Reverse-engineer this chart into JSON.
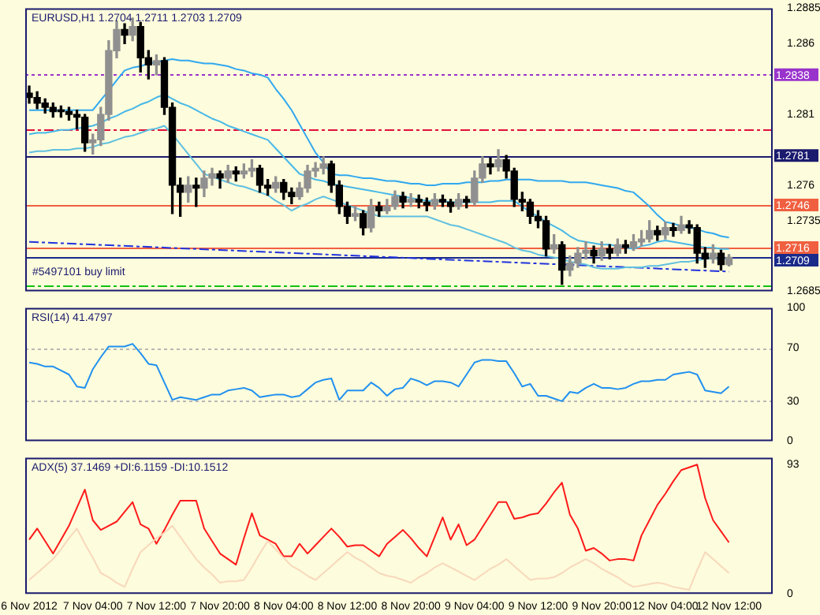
{
  "chart_data": [
    {
      "type": "candlestick",
      "title": "EURUSD,H1 1.2704 1.2711 1.2703 1.2709",
      "colors": [
        "#000000",
        "#000000",
        "#000000",
        "#000000",
        "#000000",
        "#000000",
        "#000000",
        "#000000",
        "#909090",
        "#909090",
        "#909090",
        "#909090",
        "#000000",
        "#909090",
        "#000000",
        "#000000",
        "#909090",
        "#000000",
        "#000000",
        "#000000",
        "#909090",
        "#000000",
        "#909090",
        "#909090",
        "#000000",
        "#909090",
        "#000000",
        "#909090",
        "#909090",
        "#000000",
        "#000000",
        "#909090",
        "#000000",
        "#000000",
        "#909090",
        "#909090",
        "#909090",
        "#909090",
        "#000000",
        "#000000",
        "#000000",
        "#909090",
        "#000000",
        "#909090",
        "#000000",
        "#909090",
        "#909090",
        "#000000",
        "#909090",
        "#000000",
        "#000000",
        "#909090",
        "#000000",
        "#000000",
        "#909090",
        "#000000",
        "#909090",
        "#909090",
        "#000000",
        "#909090",
        "#000000",
        "#000000",
        "#000000",
        "#000000",
        "#000000",
        "#000000",
        "#909090",
        "#000000",
        "#909090",
        "#909090",
        "#909090",
        "#000000",
        "#909090",
        "#000000",
        "#909090",
        "#000000",
        "#909090",
        "#909090",
        "#909090",
        "#000000",
        "#909090",
        "#000000",
        "#909090",
        "#000000",
        "#000000",
        "#000000",
        "#909090",
        "#000000",
        "#909090",
        null,
        null,
        null,
        null,
        null
      ],
      "categories": [
        "6 Nov 2012",
        null,
        null,
        null,
        null,
        null,
        null,
        null,
        "7 Nov 04:00",
        null,
        null,
        null,
        null,
        null,
        null,
        null,
        "7 Nov 12:00",
        null,
        null,
        null,
        null,
        null,
        null,
        null,
        "7 Nov 20:00",
        null,
        null,
        null,
        null,
        null,
        null,
        null,
        "8 Nov 04:00",
        null,
        null,
        null,
        null,
        null,
        null,
        null,
        "8 Nov 12:00",
        null,
        null,
        null,
        null,
        null,
        null,
        null,
        "8 Nov 20:00",
        null,
        null,
        null,
        null,
        null,
        null,
        null,
        "9 Nov 04:00",
        null,
        null,
        null,
        null,
        null,
        null,
        null,
        "9 Nov 12:00",
        null,
        null,
        null,
        null,
        null,
        null,
        null,
        "9 Nov 20:00",
        null,
        null,
        null,
        null,
        null,
        null,
        null,
        "12 Nov 04:00",
        null,
        null,
        null,
        null,
        null,
        null,
        null,
        "12 Nov 12:00",
        null,
        null,
        null,
        null,
        null
      ],
      "ohlc": [
        [
          1.2825,
          1.283,
          1.2818,
          1.2822
        ],
        [
          1.2822,
          1.2826,
          1.2814,
          1.2818
        ],
        [
          1.2818,
          1.2821,
          1.2811,
          1.2815
        ],
        [
          1.2815,
          1.2818,
          1.2808,
          1.2812
        ],
        [
          1.2812,
          1.2816,
          1.2808,
          1.2812
        ],
        [
          1.2812,
          1.2815,
          1.2806,
          1.281
        ],
        [
          1.281,
          1.2813,
          1.28,
          1.2808
        ],
        [
          1.2808,
          1.281,
          1.2784,
          1.279
        ],
        [
          1.279,
          1.2796,
          1.2782,
          1.2792
        ],
        [
          1.2792,
          1.2815,
          1.2788,
          1.281
        ],
        [
          1.281,
          1.2862,
          1.2806,
          1.2855
        ],
        [
          1.2855,
          1.2876,
          1.285,
          1.287
        ],
        [
          1.287,
          1.2874,
          1.286,
          1.2866
        ],
        [
          1.2866,
          1.2878,
          1.2862,
          1.2872
        ],
        [
          1.2872,
          1.2875,
          1.284,
          1.285
        ],
        [
          1.285,
          1.2855,
          1.2835,
          1.2845
        ],
        [
          1.2845,
          1.2852,
          1.2838,
          1.2848
        ],
        [
          1.2848,
          1.285,
          1.281,
          1.2815
        ],
        [
          1.2815,
          1.2818,
          1.274,
          1.276
        ],
        [
          1.276,
          1.2765,
          1.2738,
          1.2755
        ],
        [
          1.2755,
          1.2766,
          1.2748,
          1.276
        ],
        [
          1.276,
          1.2765,
          1.2745,
          1.2758
        ],
        [
          1.2758,
          1.277,
          1.2752,
          1.2765
        ],
        [
          1.2765,
          1.2772,
          1.276,
          1.2768
        ],
        [
          1.2768,
          1.277,
          1.2758,
          1.2765
        ],
        [
          1.2765,
          1.2774,
          1.2762,
          1.277
        ],
        [
          1.277,
          1.2773,
          1.2763,
          1.2768
        ],
        [
          1.2768,
          1.2775,
          1.2765,
          1.277
        ],
        [
          1.277,
          1.2778,
          1.2766,
          1.2772
        ],
        [
          1.2772,
          1.2774,
          1.2755,
          1.276
        ],
        [
          1.276,
          1.2764,
          1.2753,
          1.2758
        ],
        [
          1.2758,
          1.2766,
          1.2755,
          1.2762
        ],
        [
          1.2762,
          1.2764,
          1.275,
          1.2755
        ],
        [
          1.2755,
          1.2758,
          1.2747,
          1.2752
        ],
        [
          1.2752,
          1.2762,
          1.275,
          1.2758
        ],
        [
          1.2758,
          1.2774,
          1.2755,
          1.277
        ],
        [
          1.277,
          1.2776,
          1.2766,
          1.2772
        ],
        [
          1.2772,
          1.278,
          1.2768,
          1.2775
        ],
        [
          1.2775,
          1.2777,
          1.2755,
          1.276
        ],
        [
          1.276,
          1.2763,
          1.274,
          1.2745
        ],
        [
          1.2745,
          1.2748,
          1.2733,
          1.2738
        ],
        [
          1.2738,
          1.2745,
          1.2735,
          1.274
        ],
        [
          1.274,
          1.2742,
          1.2725,
          1.273
        ],
        [
          1.273,
          1.275,
          1.2727,
          1.2745
        ],
        [
          1.2745,
          1.2748,
          1.2738,
          1.2742
        ],
        [
          1.2742,
          1.275,
          1.274,
          1.2745
        ],
        [
          1.2745,
          1.2756,
          1.2743,
          1.2752
        ],
        [
          1.2752,
          1.2755,
          1.2744,
          1.2748
        ],
        [
          1.2748,
          1.2754,
          1.2745,
          1.275
        ],
        [
          1.275,
          1.2753,
          1.2744,
          1.2748
        ],
        [
          1.2748,
          1.2751,
          1.2742,
          1.2746
        ],
        [
          1.2746,
          1.2754,
          1.2743,
          1.275
        ],
        [
          1.275,
          1.2753,
          1.2745,
          1.2748
        ],
        [
          1.2748,
          1.275,
          1.2741,
          1.2745
        ],
        [
          1.2745,
          1.2754,
          1.2743,
          1.275
        ],
        [
          1.275,
          1.2752,
          1.2744,
          1.2748
        ],
        [
          1.2748,
          1.277,
          1.2746,
          1.2765
        ],
        [
          1.2765,
          1.278,
          1.2762,
          1.2775
        ],
        [
          1.2775,
          1.2779,
          1.2768,
          1.2773
        ],
        [
          1.2773,
          1.2785,
          1.277,
          1.2778
        ],
        [
          1.2778,
          1.2781,
          1.2765,
          1.277
        ],
        [
          1.277,
          1.2772,
          1.2745,
          1.275
        ],
        [
          1.275,
          1.2755,
          1.2742,
          1.2748
        ],
        [
          1.2748,
          1.275,
          1.2733,
          1.2738
        ],
        [
          1.2738,
          1.2742,
          1.273,
          1.2735
        ],
        [
          1.2735,
          1.2738,
          1.271,
          1.2715
        ],
        [
          1.2715,
          1.2725,
          1.2712,
          1.2718
        ],
        [
          1.2718,
          1.272,
          1.269,
          1.27
        ],
        [
          1.27,
          1.271,
          1.2696,
          1.2705
        ],
        [
          1.2705,
          1.2716,
          1.2702,
          1.2712
        ],
        [
          1.2712,
          1.272,
          1.2708,
          1.2714
        ],
        [
          1.2714,
          1.2717,
          1.2705,
          1.271
        ],
        [
          1.271,
          1.272,
          1.2707,
          1.2715
        ],
        [
          1.2715,
          1.2718,
          1.2708,
          1.2712
        ],
        [
          1.2712,
          1.2722,
          1.271,
          1.2718
        ],
        [
          1.2718,
          1.2721,
          1.2712,
          1.2716
        ],
        [
          1.2716,
          1.2725,
          1.2714,
          1.272
        ],
        [
          1.272,
          1.2728,
          1.2717,
          1.2722
        ],
        [
          1.2722,
          1.2735,
          1.272,
          1.2728
        ],
        [
          1.2728,
          1.2731,
          1.2721,
          1.2725
        ],
        [
          1.2725,
          1.2734,
          1.2722,
          1.273
        ],
        [
          1.273,
          1.2733,
          1.2724,
          1.2728
        ],
        [
          1.2728,
          1.2738,
          1.2726,
          1.2732
        ],
        [
          1.2732,
          1.2735,
          1.2726,
          1.273
        ],
        [
          1.273,
          1.2732,
          1.2705,
          1.2712
        ],
        [
          1.2712,
          1.2716,
          1.2702,
          1.2708
        ],
        [
          1.2708,
          1.2718,
          1.2705,
          1.2712
        ],
        [
          1.2712,
          1.2714,
          1.27,
          1.2704
        ],
        [
          1.2704,
          1.2711,
          1.2703,
          1.2709
        ],
        null,
        null,
        null,
        null,
        null
      ],
      "series": [
        {
          "type": "line",
          "color": "#30a8f0",
          "values": [
            1.2813,
            1.2813,
            1.2813,
            1.2813,
            1.2813,
            1.2813,
            1.2813,
            1.2813,
            1.2813,
            1.282,
            1.2827,
            1.2834,
            1.2841,
            1.2843,
            1.2844,
            1.2846,
            1.2847,
            1.2848,
            1.2849,
            1.2848,
            1.2848,
            1.2847,
            1.2846,
            1.2846,
            1.2845,
            1.2844,
            1.2842,
            1.2841,
            1.2839,
            1.2838,
            1.2836,
            1.2828,
            1.2821,
            1.2813,
            1.2803,
            1.2793,
            1.2783,
            1.2776,
            1.2768,
            1.2767,
            1.2767,
            1.2766,
            1.2765,
            1.2765,
            1.2764,
            1.2763,
            1.2763,
            1.2762,
            1.2761,
            1.2761,
            1.276,
            1.276,
            1.2761,
            1.2761,
            1.2761,
            1.2762,
            1.2762,
            1.2762,
            1.2763,
            1.2763,
            1.2764,
            1.2764,
            1.2764,
            1.2764,
            1.2763,
            1.2763,
            1.2763,
            1.2763,
            1.2762,
            1.2762,
            1.2762,
            1.2761,
            1.276,
            1.2759,
            1.2758,
            1.2756,
            1.2755,
            1.275,
            1.2745,
            1.2739,
            1.2734,
            1.2733,
            1.2731,
            1.273,
            1.2729,
            1.2727,
            1.2726,
            1.2724,
            1.2723,
            null,
            null,
            null,
            null,
            null
          ]
        },
        {
          "type": "line",
          "color": "#48b8e8",
          "values": [
            1.2796,
            1.2797,
            1.2797,
            1.2798,
            1.2799,
            1.2799,
            1.28,
            1.2801,
            1.2802,
            1.2804,
            1.2807,
            1.2809,
            1.2812,
            1.2814,
            1.2817,
            1.2819,
            1.2822,
            1.2824,
            1.2821,
            1.2818,
            1.2816,
            1.2813,
            1.281,
            1.2807,
            1.2805,
            1.2802,
            1.28,
            1.2798,
            1.2796,
            1.2794,
            1.2792,
            1.2786,
            1.278,
            1.2774,
            1.2768,
            1.2766,
            1.2764,
            1.2763,
            1.2761,
            1.276,
            1.2759,
            1.2758,
            1.2757,
            1.2756,
            1.2755,
            1.2754,
            1.2753,
            1.2752,
            1.2751,
            1.275,
            1.2749,
            1.2749,
            1.2749,
            1.2748,
            1.2748,
            1.2748,
            1.2748,
            1.2748,
            1.2748,
            1.2749,
            1.2749,
            1.2749,
            1.2745,
            1.2741,
            1.2738,
            1.2734,
            1.2731,
            1.2728,
            1.2724,
            1.2721,
            1.272,
            1.2719,
            1.2718,
            1.2718,
            1.2717,
            1.2716,
            1.2715,
            1.2717,
            1.2718,
            1.272,
            1.2721,
            1.272,
            1.2719,
            1.2718,
            1.2717,
            1.2716,
            1.2716,
            1.2715,
            1.2715,
            null,
            null,
            null,
            null,
            null
          ]
        },
        {
          "type": "line",
          "color": "#60c0e0",
          "values": [
            1.2783,
            1.2784,
            1.2784,
            1.2785,
            1.2785,
            1.2785,
            1.2786,
            1.2786,
            1.2787,
            1.2789,
            1.279,
            1.2792,
            1.2794,
            1.2795,
            1.2797,
            1.2799,
            1.28,
            1.2802,
            1.2796,
            1.2789,
            1.2782,
            1.2775,
            1.2768,
            1.2766,
            1.2764,
            1.2762,
            1.276,
            1.2759,
            1.2757,
            1.2755,
            1.2753,
            1.2749,
            1.2746,
            1.2742,
            1.2745,
            1.2747,
            1.275,
            1.2752,
            1.275,
            1.2748,
            1.2746,
            1.2744,
            1.2742,
            1.274,
            1.2738,
            1.2738,
            1.2738,
            1.2738,
            1.2738,
            1.2738,
            1.2738,
            1.2736,
            1.2734,
            1.2732,
            1.2731,
            1.2729,
            1.2727,
            1.2725,
            1.2723,
            1.2721,
            1.2719,
            1.2716,
            1.2714,
            1.2713,
            1.2711,
            1.271,
            1.2709,
            1.2708,
            1.2706,
            1.2705,
            1.2704,
            1.2702,
            1.2701,
            1.2701,
            1.2701,
            1.2702,
            1.2702,
            1.2702,
            1.2703,
            1.2703,
            1.2704,
            1.2705,
            1.2706,
            1.2706,
            1.2707,
            1.2708,
            1.2708,
            1.2708,
            1.2708,
            null,
            null,
            null,
            null,
            null
          ]
        },
        {
          "type": "line",
          "color": "#2233dd",
          "line_style": "dashed",
          "x": [
            "6 Nov 2012",
            "12 Nov 12:00"
          ],
          "values": [
            1.272,
            1.2699
          ]
        }
      ],
      "ylim": [
        1.2685,
        1.2885
      ],
      "yticks": [
        1.2685,
        1.2735,
        1.276,
        1.281,
        1.286,
        1.2885
      ],
      "ref_lines": [
        {
          "axis": "y",
          "value": 1.2838,
          "label": "1.2838",
          "color": "#9933cc",
          "line_style": "dotted"
        },
        {
          "axis": "y",
          "value": 1.28,
          "color": "#e0103a",
          "line_style": "dashed"
        },
        {
          "axis": "y",
          "value": 1.2781,
          "label": "1.2781",
          "color": "#1a1a6e"
        },
        {
          "axis": "y",
          "value": 1.2746,
          "label": "1.2746",
          "color": "#f06040"
        },
        {
          "axis": "y",
          "value": 1.2716,
          "label": "1.2716",
          "color": "#f06040"
        },
        {
          "axis": "y",
          "value": 1.2709,
          "label": "1.2709",
          "color": "#1a2a8a"
        },
        {
          "axis": "y",
          "value": 1.2689,
          "color": "#10c010",
          "line_style": "dashed"
        }
      ],
      "annotations": [
        {
          "text": "#5497101 buy limit",
          "x": "6 Nov 2012",
          "y": 1.2689
        }
      ],
      "tick_labels": "y"
    },
    {
      "type": "line",
      "title": "RSI(14) 41.4797",
      "color": "#2090f0",
      "categories": [
        "6 Nov 2012",
        null,
        null,
        null,
        null,
        null,
        null,
        null,
        "7 Nov 04:00",
        null,
        null,
        null,
        null,
        null,
        null,
        null,
        "7 Nov 12:00",
        null,
        null,
        null,
        null,
        null,
        null,
        null,
        "7 Nov 20:00",
        null,
        null,
        null,
        null,
        null,
        null,
        null,
        "8 Nov 04:00",
        null,
        null,
        null,
        null,
        null,
        null,
        null,
        "8 Nov 12:00",
        null,
        null,
        null,
        null,
        null,
        null,
        null,
        "8 Nov 20:00",
        null,
        null,
        null,
        null,
        null,
        null,
        null,
        "9 Nov 04:00",
        null,
        null,
        null,
        null,
        null,
        null,
        null,
        "9 Nov 12:00",
        null,
        null,
        null,
        null,
        null,
        null,
        null,
        "9 Nov 20:00",
        null,
        null,
        null,
        null,
        null,
        null,
        null,
        "12 Nov 04:00",
        null,
        null,
        null,
        null,
        null,
        null,
        null,
        "12 Nov 12:00",
        null,
        null,
        null,
        null,
        null
      ],
      "values": [
        59,
        58,
        56,
        56,
        53,
        50,
        41,
        40,
        54,
        63,
        71,
        71,
        71,
        73,
        66,
        58,
        57,
        44,
        31,
        33,
        32,
        31,
        33,
        35,
        35,
        38,
        39,
        40,
        38,
        33,
        34,
        35,
        35,
        33,
        34,
        39,
        44,
        46,
        47,
        31,
        38,
        38,
        38,
        44,
        40,
        34,
        39,
        40,
        47,
        45,
        42,
        45,
        45,
        44,
        41,
        50,
        59,
        61,
        61,
        60,
        60,
        51,
        41,
        43,
        34,
        34,
        32,
        30,
        37,
        36,
        40,
        43,
        40,
        40,
        39,
        40,
        43,
        45,
        45,
        46,
        46,
        50,
        51,
        52,
        50,
        38,
        37,
        36,
        41,
        null,
        null,
        null,
        null,
        null
      ],
      "ylim": [
        0,
        100
      ],
      "yticks": [
        0,
        30,
        70,
        100
      ],
      "ref_lines": [
        {
          "axis": "y",
          "value": 30,
          "color": "#b8b8b8",
          "line_style": "dotted"
        },
        {
          "axis": "y",
          "value": 70,
          "color": "#b8b8b8",
          "line_style": "dotted"
        }
      ],
      "tick_labels": "y"
    },
    {
      "type": "line",
      "title": "ADX(5) 37.1469 +DI:6.1159 -DI:10.1512",
      "categories": [
        "6 Nov 2012",
        null,
        null,
        null,
        null,
        null,
        null,
        null,
        "7 Nov 04:00",
        null,
        null,
        null,
        null,
        null,
        null,
        null,
        "7 Nov 12:00",
        null,
        null,
        null,
        null,
        null,
        null,
        null,
        "7 Nov 20:00",
        null,
        null,
        null,
        null,
        null,
        null,
        null,
        "8 Nov 04:00",
        null,
        null,
        null,
        null,
        null,
        null,
        null,
        "8 Nov 12:00",
        null,
        null,
        null,
        null,
        null,
        null,
        null,
        "8 Nov 20:00",
        null,
        null,
        null,
        null,
        null,
        null,
        null,
        "9 Nov 04:00",
        null,
        null,
        null,
        null,
        null,
        null,
        null,
        "9 Nov 12:00",
        null,
        null,
        null,
        null,
        null,
        null,
        null,
        "9 Nov 20:00",
        null,
        null,
        null,
        null,
        null,
        null,
        null,
        "12 Nov 04:00",
        null,
        null,
        null,
        null,
        null,
        null,
        null,
        "12 Nov 12:00",
        null,
        null,
        null,
        null,
        null
      ],
      "series": [
        {
          "color": "#f8d8bc",
          "values": [
            10,
            15,
            20,
            25,
            32,
            40,
            47,
            36,
            26,
            15,
            12,
            8,
            5,
            18,
            30,
            35,
            40,
            44,
            49,
            41,
            33,
            25,
            19,
            14,
            8,
            9,
            9,
            10,
            19,
            29,
            38,
            32,
            26,
            20,
            17,
            13,
            10,
            15,
            20,
            25,
            30,
            26,
            23,
            19,
            15,
            13,
            12,
            10,
            8,
            12,
            15,
            19,
            22,
            19,
            16,
            13,
            10,
            14,
            18,
            21,
            25,
            20,
            15,
            10,
            11,
            11,
            12,
            15,
            19,
            22,
            25,
            22,
            18,
            15,
            12,
            8,
            5,
            6,
            7,
            8,
            7,
            5,
            4,
            3,
            17,
            30,
            25,
            20,
            15,
            null,
            null,
            null,
            null,
            null
          ]
        },
        {
          "color": "#ff1a1a",
          "values": [
            39,
            47,
            38,
            29,
            39,
            49,
            62,
            75,
            53,
            46,
            49,
            52,
            59,
            66,
            50,
            47,
            36,
            46,
            57,
            67,
            67,
            67,
            47,
            38,
            29,
            25,
            21,
            40,
            58,
            42,
            39,
            36,
            27,
            27,
            36,
            29,
            35,
            41,
            47,
            41,
            34,
            35,
            35,
            31,
            27,
            36,
            41,
            46,
            40,
            33,
            27,
            41,
            55,
            39,
            50,
            35,
            39,
            48,
            57,
            66,
            66,
            54,
            55,
            57,
            58,
            65,
            73,
            80,
            57,
            47,
            31,
            33,
            29,
            24,
            25,
            25,
            24,
            42,
            53,
            64,
            72,
            81,
            89,
            91,
            93,
            69,
            53,
            45,
            37,
            null,
            null,
            null,
            null,
            null
          ]
        }
      ],
      "ylim": [
        0,
        98
      ],
      "yticks": [
        0,
        93
      ]
    }
  ]
}
